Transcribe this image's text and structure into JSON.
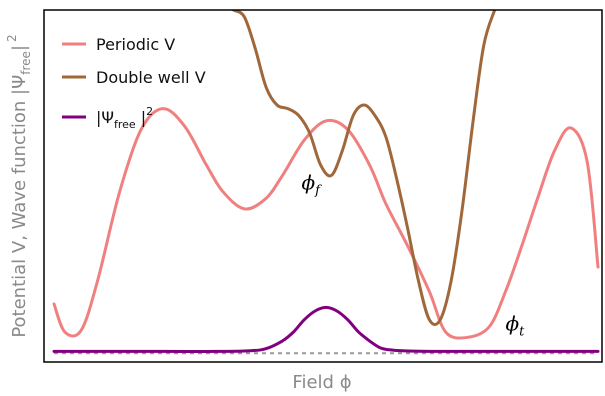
{
  "chart_data": {
    "type": "line",
    "xlabel": "Field  ϕ",
    "ylabel_main": "Potential  V,   Wave function  |Ψ",
    "ylabel_sub": "free",
    "ylabel_end": "|",
    "ylabel_sup": "2",
    "grid": false,
    "legend_placement": "top-left",
    "xlim": [
      0,
      1
    ],
    "ylim": [
      0,
      1
    ],
    "series": [
      {
        "name": "Periodic  V",
        "color": "#f08080",
        "x": [
          0.0,
          0.02,
          0.05,
          0.08,
          0.12,
          0.16,
          0.2,
          0.24,
          0.28,
          0.31,
          0.35,
          0.39,
          0.42,
          0.46,
          0.5,
          0.54,
          0.58,
          0.61,
          0.65,
          0.69,
          0.72,
          0.76,
          0.8,
          0.83,
          0.86,
          0.89,
          0.92,
          0.95,
          0.98,
          1.0
        ],
        "y": [
          0.165,
          0.085,
          0.09,
          0.23,
          0.48,
          0.66,
          0.72,
          0.67,
          0.56,
          0.485,
          0.435,
          0.465,
          0.53,
          0.63,
          0.685,
          0.66,
          0.56,
          0.45,
          0.33,
          0.2,
          0.085,
          0.07,
          0.1,
          0.2,
          0.33,
          0.47,
          0.6,
          0.665,
          0.57,
          0.27
        ]
      },
      {
        "name": "Double well  V",
        "color": "#a0683a",
        "x": [
          0.33,
          0.35,
          0.37,
          0.39,
          0.41,
          0.43,
          0.45,
          0.47,
          0.49,
          0.51,
          0.53,
          0.55,
          0.57,
          0.59,
          0.61,
          0.63,
          0.65,
          0.67,
          0.69,
          0.71,
          0.73,
          0.75,
          0.77,
          0.79,
          0.81
        ],
        "y": [
          1.0,
          0.98,
          0.89,
          0.78,
          0.73,
          0.72,
          0.7,
          0.65,
          0.56,
          0.53,
          0.6,
          0.7,
          0.73,
          0.7,
          0.64,
          0.52,
          0.38,
          0.23,
          0.12,
          0.12,
          0.23,
          0.43,
          0.68,
          0.9,
          1.0
        ]
      },
      {
        "name": "|Ψfree|2",
        "color": "#800080",
        "x": [
          0.0,
          0.2,
          0.3,
          0.36,
          0.39,
          0.42,
          0.44,
          0.46,
          0.48,
          0.5,
          0.52,
          0.54,
          0.56,
          0.58,
          0.6,
          0.62,
          0.66,
          0.7,
          0.8,
          1.0
        ],
        "y": [
          0.03,
          0.03,
          0.03,
          0.032,
          0.038,
          0.06,
          0.085,
          0.12,
          0.145,
          0.155,
          0.145,
          0.12,
          0.085,
          0.06,
          0.04,
          0.034,
          0.031,
          0.03,
          0.03,
          0.03
        ]
      }
    ],
    "baseline": {
      "y": 0.025,
      "style": "dashed",
      "color": "#999999"
    },
    "annotations": [
      {
        "text": "ϕ",
        "sub": "f",
        "x": 0.455,
        "y": 0.49
      },
      {
        "text": "ϕ",
        "sub": "t",
        "x": 0.83,
        "y": 0.09
      }
    ]
  }
}
